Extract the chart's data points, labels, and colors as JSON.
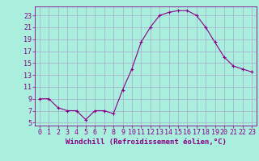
{
  "x": [
    0,
    1,
    2,
    3,
    4,
    5,
    6,
    7,
    8,
    9,
    10,
    11,
    12,
    13,
    14,
    15,
    16,
    17,
    18,
    19,
    20,
    21,
    22,
    23
  ],
  "y": [
    9,
    9,
    7.5,
    7,
    7,
    5.5,
    7,
    7,
    6.5,
    10.5,
    14,
    18.5,
    21,
    23,
    23.5,
    23.8,
    23.8,
    23,
    21,
    18.5,
    16,
    14.5,
    14,
    13.5
  ],
  "line_color": "#880088",
  "bg_color": "#aaeedd",
  "grid_color": "#aaaacc",
  "xlabel": "Windchill (Refroidissement éolien,°C)",
  "yticks": [
    5,
    7,
    9,
    11,
    13,
    15,
    17,
    19,
    21,
    23
  ],
  "ylim": [
    4.5,
    24.5
  ],
  "xlim": [
    -0.5,
    23.5
  ],
  "label_fontsize": 6.5,
  "tick_fontsize": 6
}
